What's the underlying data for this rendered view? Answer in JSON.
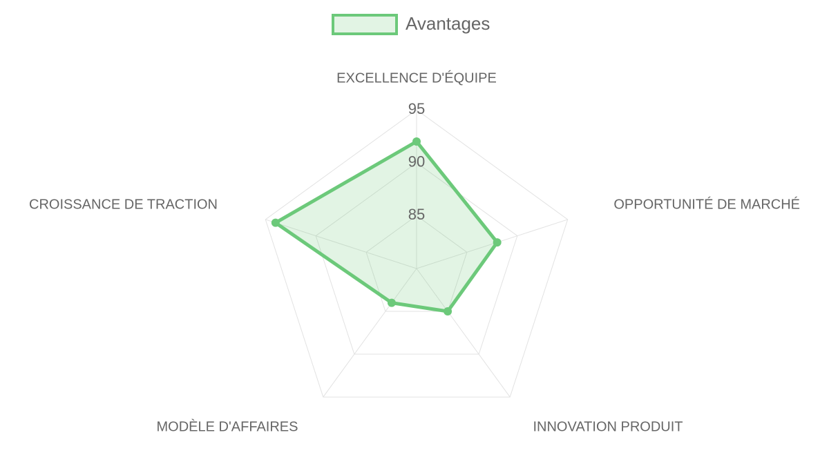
{
  "chart_data": {
    "type": "radar",
    "categories": [
      "EXCELLENCE D'ÉQUIPE",
      "OPPORTUNITÉ DE MARCHÉ",
      "INNOVATION PRODUIT",
      "MODÈLE D'AFFAIRES",
      "CROISSANCE DE TRACTION"
    ],
    "series": [
      {
        "name": "Avantages",
        "color": "#6cc97a",
        "values": [
          92,
          88,
          85,
          84,
          94
        ]
      }
    ],
    "ylim": [
      80,
      95
    ],
    "yticks": [
      85,
      90,
      95
    ],
    "grid": true,
    "legend": "top"
  }
}
